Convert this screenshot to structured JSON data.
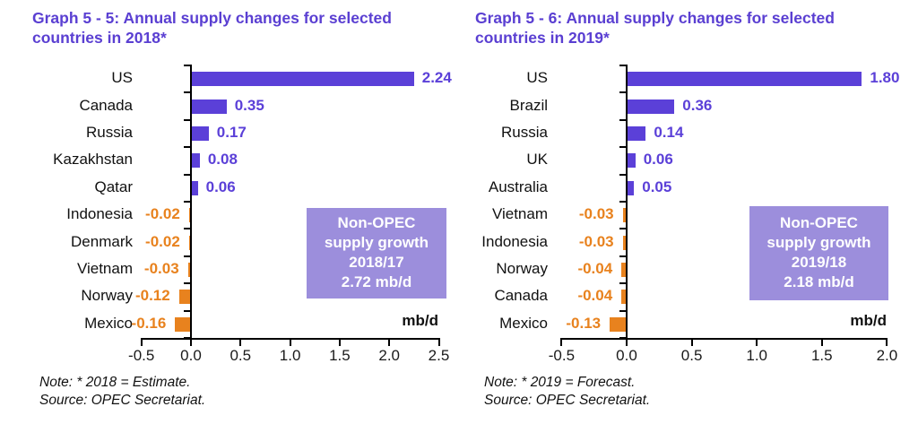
{
  "colors": {
    "title": "#5A3FD2",
    "positive": "#5B40D8",
    "negative": "#E8821E",
    "box_fill": "#9C8EDC",
    "box_text": "#FFFFFF",
    "axis": "#000000",
    "text": "#111111"
  },
  "chart_data": [
    {
      "type": "bar",
      "orientation": "horizontal",
      "title": "Graph 5 - 5: Annual supply changes for selected countries in 2018*",
      "categories": [
        "US",
        "Canada",
        "Russia",
        "Kazakhstan",
        "Qatar",
        "Indonesia",
        "Denmark",
        "Vietnam",
        "Norway",
        "Mexico"
      ],
      "values": [
        2.24,
        0.35,
        0.17,
        0.08,
        0.06,
        -0.02,
        -0.02,
        -0.03,
        -0.12,
        -0.16
      ],
      "value_labels": [
        "2.24",
        "0.35",
        "0.17",
        "0.08",
        "0.06",
        "-0.02",
        "-0.02",
        "-0.03",
        "-0.12",
        "-0.16"
      ],
      "xlim": [
        -0.5,
        2.5
      ],
      "xticks": [
        "-0.5",
        "0.0",
        "0.5",
        "1.0",
        "1.5",
        "2.0",
        "2.5"
      ],
      "xlabel": "",
      "ylabel": "",
      "grid": false,
      "legend": "none",
      "unit_label": "mb/d",
      "annotation_box": [
        "Non-OPEC",
        "supply growth",
        "2018/17",
        "2.72 mb/d"
      ],
      "note": "Note: * 2018 = Estimate.",
      "source": "Source: OPEC Secretariat."
    },
    {
      "type": "bar",
      "orientation": "horizontal",
      "title": "Graph 5 - 6: Annual supply changes for selected countries in 2019*",
      "categories": [
        "US",
        "Brazil",
        "Russia",
        "UK",
        "Australia",
        "Vietnam",
        "Indonesia",
        "Norway",
        "Canada",
        "Mexico"
      ],
      "values": [
        1.8,
        0.36,
        0.14,
        0.06,
        0.05,
        -0.03,
        -0.03,
        -0.04,
        -0.04,
        -0.13
      ],
      "value_labels": [
        "1.80",
        "0.36",
        "0.14",
        "0.06",
        "0.05",
        "-0.03",
        "-0.03",
        "-0.04",
        "-0.04",
        "-0.13"
      ],
      "xlim": [
        -0.5,
        2.0
      ],
      "xticks": [
        "-0.5",
        "0.0",
        "0.5",
        "1.0",
        "1.5",
        "2.0"
      ],
      "xlabel": "",
      "ylabel": "",
      "grid": false,
      "legend": "none",
      "unit_label": "mb/d",
      "annotation_box": [
        "Non-OPEC",
        "supply growth",
        "2019/18",
        "2.18 mb/d"
      ],
      "note": "Note: * 2019 = Forecast.",
      "source": "Source: OPEC Secretariat."
    }
  ]
}
